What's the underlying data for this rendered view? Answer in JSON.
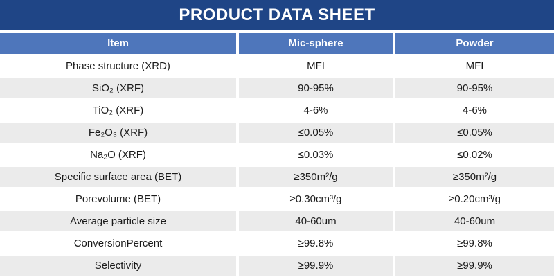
{
  "title": "PRODUCT DATA SHEET",
  "colors": {
    "banner_background": "#1F4586",
    "header_background": "#4E76BB",
    "stripe_background": "#EBEBEB",
    "header_text": "#FFFFFF",
    "body_text": "#1A1A1A"
  },
  "table": {
    "columns": [
      "Item",
      "Mic-sphere",
      "Powder"
    ],
    "rows": [
      {
        "item": "Phase structure (XRD)",
        "mic_sphere": "MFI",
        "powder": "MFI"
      },
      {
        "item": "SiO₂ (XRF)",
        "mic_sphere": "90-95%",
        "powder": "90-95%"
      },
      {
        "item": "TiO₂ (XRF)",
        "mic_sphere": "4-6%",
        "powder": "4-6%"
      },
      {
        "item": "Fe₂O₃ (XRF)",
        "mic_sphere": "≤0.05%",
        "powder": "≤0.05%"
      },
      {
        "item": "Na₂O (XRF)",
        "mic_sphere": "≤0.03%",
        "powder": "≤0.02%"
      },
      {
        "item": "Specific surface area (BET)",
        "mic_sphere": "≥350m²/g",
        "powder": "≥350m²/g"
      },
      {
        "item": "Porevolume (BET)",
        "mic_sphere": "≥0.30cm³/g",
        "powder": "≥0.20cm³/g"
      },
      {
        "item": "Average particle size",
        "mic_sphere": "40-60um",
        "powder": "40-60um"
      },
      {
        "item": "ConversionPercent",
        "mic_sphere": "≥99.8%",
        "powder": "≥99.8%"
      },
      {
        "item": "Selectivity",
        "mic_sphere": "≥99.9%",
        "powder": "≥99.9%"
      }
    ]
  }
}
